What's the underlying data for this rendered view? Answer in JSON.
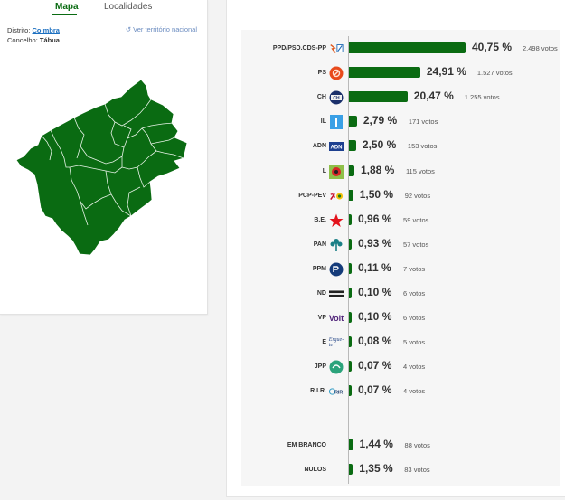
{
  "tabs": {
    "map": "Mapa",
    "localities": "Localidades"
  },
  "location": {
    "district_label": "Distrito:",
    "district": "Coimbra",
    "municipality_label": "Concelho:",
    "municipality": "Tábua",
    "national_link": "Ver território nacional"
  },
  "colors": {
    "bar": "#0a6b12",
    "map_fill": "#0a6b12"
  },
  "results": [
    {
      "party": "PPD/PSD.CDS-PP",
      "pct": "40,75 %",
      "votes": "2.498 votos",
      "value": 40.75,
      "logo": "psd-cds-logo-icon"
    },
    {
      "party": "PS",
      "pct": "24,91 %",
      "votes": "1.527 votos",
      "value": 24.91,
      "logo": "ps-logo-icon"
    },
    {
      "party": "CH",
      "pct": "20,47 %",
      "votes": "1.255 votos",
      "value": 20.47,
      "logo": "chega-logo-icon"
    },
    {
      "party": "IL",
      "pct": "2,79 %",
      "votes": "171 votos",
      "value": 2.79,
      "logo": "il-logo-icon"
    },
    {
      "party": "ADN",
      "pct": "2,50 %",
      "votes": "153 votos",
      "value": 2.5,
      "logo": "adn-logo-icon"
    },
    {
      "party": "L",
      "pct": "1,88 %",
      "votes": "115 votos",
      "value": 1.88,
      "logo": "livre-logo-icon"
    },
    {
      "party": "PCP-PEV",
      "pct": "1,50 %",
      "votes": "92 votos",
      "value": 1.5,
      "logo": "pcp-pev-logo-icon"
    },
    {
      "party": "B.E.",
      "pct": "0,96 %",
      "votes": "59 votos",
      "value": 0.96,
      "logo": "be-logo-icon"
    },
    {
      "party": "PAN",
      "pct": "0,93 %",
      "votes": "57 votos",
      "value": 0.93,
      "logo": "pan-logo-icon"
    },
    {
      "party": "PPM",
      "pct": "0,11 %",
      "votes": "7 votos",
      "value": 0.11,
      "logo": "ppm-logo-icon"
    },
    {
      "party": "ND",
      "pct": "0,10 %",
      "votes": "6 votos",
      "value": 0.1,
      "logo": "nd-logo-icon"
    },
    {
      "party": "VP",
      "pct": "0,10 %",
      "votes": "6 votos",
      "value": 0.1,
      "logo": "volt-logo-icon"
    },
    {
      "party": "E",
      "pct": "0,08 %",
      "votes": "5 votos",
      "value": 0.08,
      "logo": "ergue-te-logo-icon"
    },
    {
      "party": "JPP",
      "pct": "0,07 %",
      "votes": "4 votos",
      "value": 0.07,
      "logo": "jpp-logo-icon"
    },
    {
      "party": "R.I.R.",
      "pct": "0,07 %",
      "votes": "4 votos",
      "value": 0.07,
      "logo": "rir-logo-icon"
    }
  ],
  "other_results": [
    {
      "party": "EM BRANCO",
      "pct": "1,44 %",
      "votes": "88 votos",
      "value": 1.44
    },
    {
      "party": "NULOS",
      "pct": "1,35 %",
      "votes": "83 votos",
      "value": 1.35
    }
  ]
}
